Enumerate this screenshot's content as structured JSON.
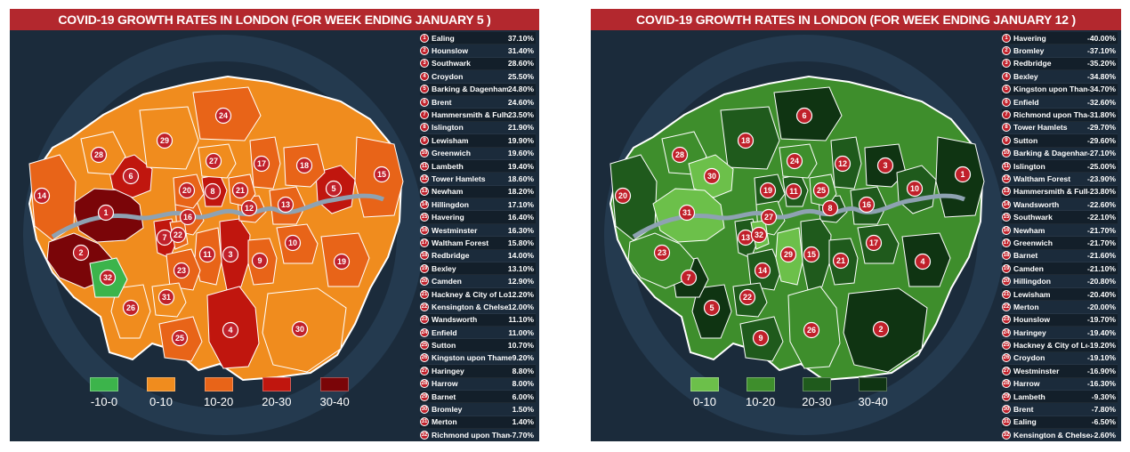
{
  "left_panel": {
    "title": "COVID-19 GROWTH RATES IN LONDON (FOR WEEK ENDING JANUARY 5 )",
    "rankings": [
      {
        "rank": "1",
        "name": "Ealing",
        "value": "37.10%"
      },
      {
        "rank": "2",
        "name": "Hounslow",
        "value": "31.40%"
      },
      {
        "rank": "3",
        "name": "Southwark",
        "value": "28.60%"
      },
      {
        "rank": "4",
        "name": "Croydon",
        "value": "25.50%"
      },
      {
        "rank": "5",
        "name": "Barking & Dagenham",
        "value": "24.80%"
      },
      {
        "rank": "6",
        "name": "Brent",
        "value": "24.60%"
      },
      {
        "rank": "7",
        "name": "Hammersmith & Fulham",
        "value": "23.50%"
      },
      {
        "rank": "8",
        "name": "Islington",
        "value": "21.90%"
      },
      {
        "rank": "9",
        "name": "Lewisham",
        "value": "19.90%"
      },
      {
        "rank": "10",
        "name": "Greenwich",
        "value": "19.60%"
      },
      {
        "rank": "11",
        "name": "Lambeth",
        "value": "19.40%"
      },
      {
        "rank": "12",
        "name": "Tower Hamlets",
        "value": "18.60%"
      },
      {
        "rank": "13",
        "name": "Newham",
        "value": "18.20%"
      },
      {
        "rank": "14",
        "name": "Hillingdon",
        "value": "17.10%"
      },
      {
        "rank": "15",
        "name": "Havering",
        "value": "16.40%"
      },
      {
        "rank": "16",
        "name": "Westminster",
        "value": "16.30%"
      },
      {
        "rank": "17",
        "name": "Waltham Forest",
        "value": "15.80%"
      },
      {
        "rank": "18",
        "name": "Redbridge",
        "value": "14.00%"
      },
      {
        "rank": "19",
        "name": "Bexley",
        "value": "13.10%"
      },
      {
        "rank": "20",
        "name": "Camden",
        "value": "12.90%"
      },
      {
        "rank": "21",
        "name": "Hackney & City of London",
        "value": "12.20%"
      },
      {
        "rank": "22",
        "name": "Kensington & Chelsea",
        "value": "12.00%"
      },
      {
        "rank": "23",
        "name": "Wandsworth",
        "value": "11.10%"
      },
      {
        "rank": "24",
        "name": "Enfield",
        "value": "11.00%"
      },
      {
        "rank": "25",
        "name": "Sutton",
        "value": "10.70%"
      },
      {
        "rank": "26",
        "name": "Kingston upon Thames",
        "value": "9.20%"
      },
      {
        "rank": "27",
        "name": "Haringey",
        "value": "8.80%"
      },
      {
        "rank": "28",
        "name": "Harrow",
        "value": "8.00%"
      },
      {
        "rank": "29",
        "name": "Barnet",
        "value": "6.00%"
      },
      {
        "rank": "30",
        "name": "Bromley",
        "value": "1.50%"
      },
      {
        "rank": "31",
        "name": "Merton",
        "value": "1.40%"
      },
      {
        "rank": "32",
        "name": "Richmond upon Thames",
        "value": "-7.70%"
      }
    ],
    "legend": [
      {
        "label": "-10-0",
        "color": "#3cb44b"
      },
      {
        "label": "0-10",
        "color": "#f08c1e"
      },
      {
        "label": "10-20",
        "color": "#e86418"
      },
      {
        "label": "20-30",
        "color": "#c0160e"
      },
      {
        "label": "30-40",
        "color": "#7a0508"
      }
    ],
    "map_labels": [
      "1",
      "2",
      "3",
      "4",
      "5",
      "6",
      "7",
      "8",
      "9",
      "10",
      "11",
      "12",
      "13",
      "14",
      "15",
      "16",
      "17",
      "18",
      "19",
      "20",
      "21",
      "22",
      "23",
      "24",
      "25",
      "26",
      "27",
      "28",
      "29",
      "30",
      "31",
      "32"
    ]
  },
  "right_panel": {
    "title": "COVID-19 GROWTH RATES IN LONDON (FOR WEEK ENDING JANUARY 12 )",
    "rankings": [
      {
        "rank": "1",
        "name": "Havering",
        "value": "-40.00%"
      },
      {
        "rank": "2",
        "name": "Bromley",
        "value": "-37.10%"
      },
      {
        "rank": "3",
        "name": "Redbridge",
        "value": "-35.20%"
      },
      {
        "rank": "4",
        "name": "Bexley",
        "value": "-34.80%"
      },
      {
        "rank": "5",
        "name": "Kingston upon Thames",
        "value": "-34.70%"
      },
      {
        "rank": "6",
        "name": "Enfield",
        "value": "-32.60%"
      },
      {
        "rank": "7",
        "name": "Richmond upon Thames",
        "value": "-31.80%"
      },
      {
        "rank": "8",
        "name": "Tower Hamlets",
        "value": "-29.70%"
      },
      {
        "rank": "9",
        "name": "Sutton",
        "value": "-29.60%"
      },
      {
        "rank": "10",
        "name": "Barking & Dagenham",
        "value": "-27.10%"
      },
      {
        "rank": "11",
        "name": "Islington",
        "value": "-25.00%"
      },
      {
        "rank": "12",
        "name": "Waltham Forest",
        "value": "-23.90%"
      },
      {
        "rank": "13",
        "name": "Hammersmith & Fulham",
        "value": "-23.80%"
      },
      {
        "rank": "14",
        "name": "Wandsworth",
        "value": "-22.60%"
      },
      {
        "rank": "15",
        "name": "Southwark",
        "value": "-22.10%"
      },
      {
        "rank": "16",
        "name": "Newham",
        "value": "-21.70%"
      },
      {
        "rank": "17",
        "name": "Greenwich",
        "value": "-21.70%"
      },
      {
        "rank": "18",
        "name": "Barnet",
        "value": "-21.60%"
      },
      {
        "rank": "19",
        "name": "Camden",
        "value": "-21.10%"
      },
      {
        "rank": "20",
        "name": "Hillingdon",
        "value": "-20.80%"
      },
      {
        "rank": "21",
        "name": "Lewisham",
        "value": "-20.40%"
      },
      {
        "rank": "22",
        "name": "Merton",
        "value": "-20.00%"
      },
      {
        "rank": "23",
        "name": "Hounslow",
        "value": "-19.70%"
      },
      {
        "rank": "24",
        "name": "Haringey",
        "value": "-19.40%"
      },
      {
        "rank": "25",
        "name": "Hackney & City of London",
        "value": "-19.20%"
      },
      {
        "rank": "26",
        "name": "Croydon",
        "value": "-19.10%"
      },
      {
        "rank": "27",
        "name": "Westminster",
        "value": "-16.90%"
      },
      {
        "rank": "28",
        "name": "Harrow",
        "value": "-16.30%"
      },
      {
        "rank": "29",
        "name": "Lambeth",
        "value": "-9.30%"
      },
      {
        "rank": "30",
        "name": "Brent",
        "value": "-7.80%"
      },
      {
        "rank": "31",
        "name": "Ealing",
        "value": "-6.50%"
      },
      {
        "rank": "32",
        "name": "Kensington & Chelsea",
        "value": "-2.60%"
      }
    ],
    "legend": [
      {
        "label": "0-10",
        "color": "#6cc04a"
      },
      {
        "label": "10-20",
        "color": "#3e8e2c"
      },
      {
        "label": "20-30",
        "color": "#1f5a1c"
      },
      {
        "label": "30-40",
        "color": "#0f3412"
      }
    ],
    "map_labels": [
      "1",
      "2",
      "3",
      "4",
      "5",
      "6",
      "7",
      "8",
      "9",
      "10",
      "11",
      "12",
      "13",
      "14",
      "15",
      "16",
      "17",
      "18",
      "19",
      "20",
      "21",
      "22",
      "23",
      "24",
      "25",
      "26",
      "27",
      "28",
      "29",
      "30",
      "31",
      "32"
    ]
  }
}
